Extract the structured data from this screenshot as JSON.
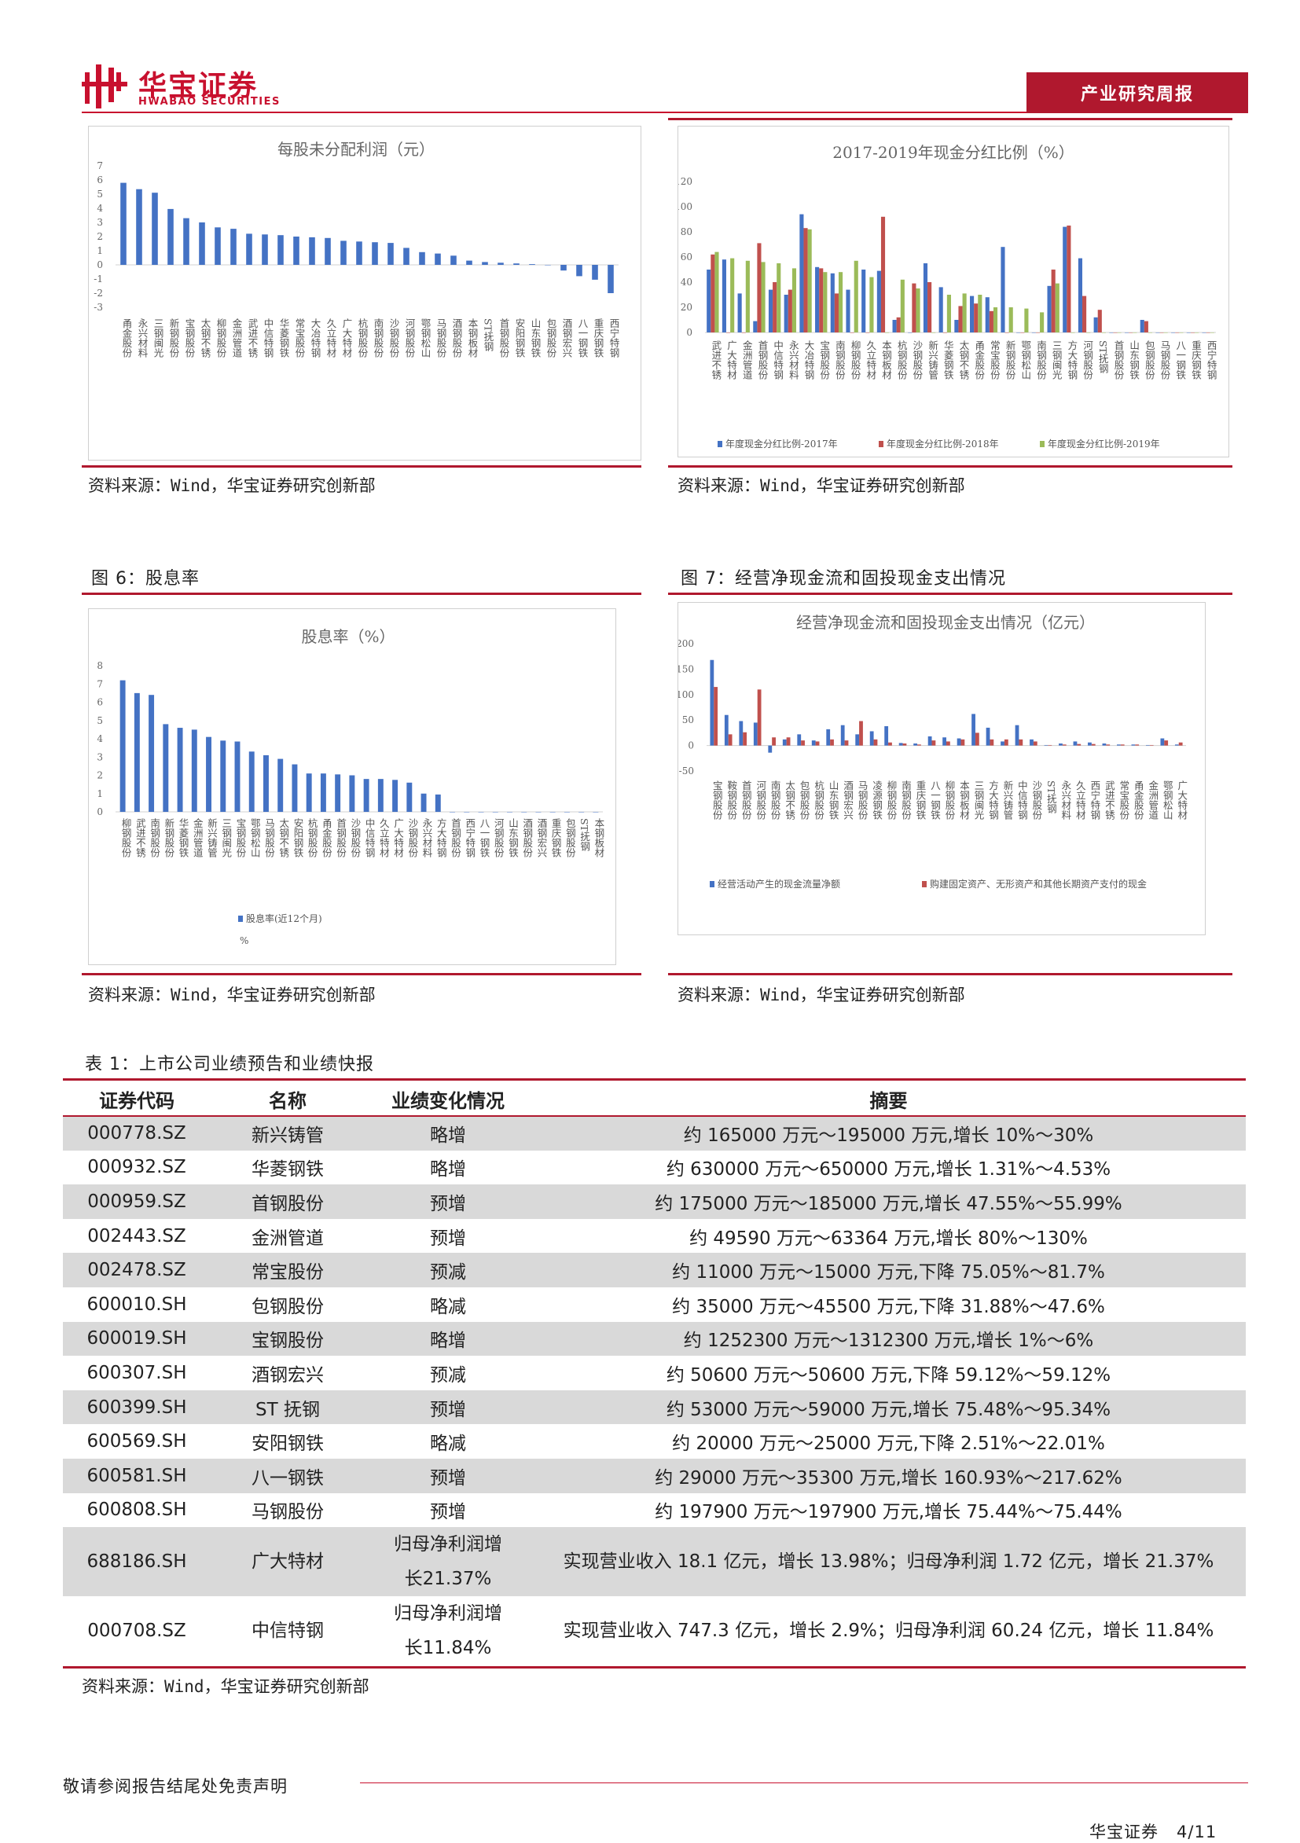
{
  "header": {
    "logo_cn": "华宝证券",
    "logo_en": "HWABAO SECURITIES",
    "report_type": "产业研究周报"
  },
  "figures": {
    "fig4": {
      "title": "每股未分配利润（元）",
      "source": "资料来源：Wind，华宝证券研究创新部"
    },
    "fig5": {
      "title": "2017-2019年现金分红比例（%）",
      "source": "资料来源：Wind，华宝证券研究创新部"
    },
    "fig6": {
      "caption": "图 6：股息率",
      "title": "股息率（%）",
      "source": "资料来源：Wind，华宝证券研究创新部"
    },
    "fig7": {
      "caption": "图 7：经营净现金流和固投现金支出情况",
      "title": "经营净现金流和固投现金支出情况（亿元）",
      "source": "资料来源：Wind，华宝证券研究创新部"
    }
  },
  "chart_data": [
    {
      "type": "bar",
      "title": "每股未分配利润（元）",
      "ylim": [
        -3,
        7
      ],
      "yticks": [
        "7",
        "6",
        "5",
        "4",
        "3",
        "2",
        "1",
        "0",
        "-1",
        "-2",
        "-3"
      ],
      "categories": [
        "甬金股份",
        "永兴材料",
        "三钢闽光",
        "新钢股份",
        "宝钢股份",
        "太钢不锈",
        "柳钢股份",
        "金洲管道",
        "武进不锈",
        "中信特钢",
        "华菱钢铁",
        "常宝股份",
        "大冶特钢",
        "久立特材",
        "广大特材",
        "杭钢股份",
        "南钢股份",
        "沙钢股份",
        "河钢股份",
        "鄂钢松山",
        "马钢股份",
        "酒钢股份",
        "本钢板材",
        "ST抚钢",
        "首钢股份",
        "安阳钢铁",
        "山东钢铁",
        "包钢股份",
        "酒钢宏兴",
        "八一钢铁",
        "重庆钢铁",
        "西宁特钢"
      ],
      "series": [
        {
          "values": [
            5.8,
            5.35,
            5.1,
            3.95,
            3.3,
            3.0,
            2.65,
            2.55,
            2.2,
            2.15,
            2.1,
            2.0,
            1.95,
            1.9,
            1.7,
            1.65,
            1.6,
            1.55,
            1.2,
            0.9,
            0.8,
            0.65,
            0.3,
            0.2,
            0.15,
            0.1,
            0.05,
            0.0,
            -0.4,
            -0.8,
            -1.05,
            -2.0
          ]
        }
      ]
    },
    {
      "type": "bar",
      "title": "2017-2019年现金分红比例（%）",
      "ylim": [
        0,
        120
      ],
      "yticks": [
        "120",
        "100",
        "80",
        "60",
        "40",
        "20",
        "0"
      ],
      "categories": [
        "武进不锈",
        "广大特材",
        "金洲管道",
        "首钢股份",
        "中信特钢",
        "永兴材料",
        "大冶特钢",
        "宝钢股份",
        "南钢股份",
        "柳钢股份",
        "久立特材",
        "本钢板材",
        "杭钢股份",
        "沙钢股份",
        "新兴铸管",
        "华菱钢铁",
        "太钢不锈",
        "甬金股份",
        "常宝股份",
        "新钢股份",
        "鄂钢松山",
        "南钢股份",
        "三钢闽光",
        "方大特钢",
        "河钢股份",
        "ST抚钢",
        "首钢股份",
        "山东钢铁",
        "包钢股份",
        "马钢股份",
        "八一钢铁",
        "重庆钢铁",
        "西宁特钢"
      ],
      "legend": "bottom",
      "series": [
        {
          "name": "年度现金分红比例-2017年",
          "values": [
            50,
            58,
            31,
            9,
            34,
            30,
            94,
            52,
            47,
            34,
            50,
            49,
            10,
            0,
            55,
            36,
            10,
            29,
            28,
            68,
            0,
            0,
            37,
            84,
            59,
            12,
            0,
            0,
            10,
            0,
            0,
            0,
            0
          ]
        },
        {
          "name": "年度现金分红比例-2018年",
          "values": [
            62,
            0,
            0,
            71,
            40,
            34,
            83,
            51,
            31,
            0,
            0,
            92,
            12,
            39,
            40,
            0,
            21,
            23,
            17,
            0,
            0,
            0,
            50,
            85,
            29,
            18,
            0,
            0,
            9,
            0,
            0,
            0,
            0
          ]
        },
        {
          "name": "年度现金分红比例-2019年",
          "values": [
            64,
            59,
            57,
            56,
            55,
            51,
            82,
            48,
            48,
            57,
            44,
            0,
            42,
            35,
            0,
            30,
            31,
            30,
            20,
            20,
            19,
            16,
            39,
            0,
            0,
            0,
            0,
            0,
            0,
            0,
            0,
            0,
            0
          ]
        }
      ]
    },
    {
      "type": "bar",
      "title": "股息率（%）",
      "ylim": [
        0,
        8
      ],
      "yticks": [
        "8",
        "7",
        "6",
        "5",
        "4",
        "3",
        "2",
        "1",
        "0"
      ],
      "categories": [
        "柳钢股份",
        "武进不锈",
        "南钢股份",
        "新钢股份",
        "华菱钢铁",
        "金洲管道",
        "新兴铸管",
        "三钢闽光",
        "宝钢股份",
        "鄂钢松山",
        "马钢股份",
        "太钢不锈",
        "安阳钢铁",
        "杭钢股份",
        "甬金股份",
        "首钢股份",
        "沙钢股份",
        "中信特钢",
        "久立特材",
        "广大特材",
        "沙钢股份",
        "永兴材料",
        "方大特钢",
        "首钢股份",
        "西宁特钢",
        "八一钢铁",
        "河钢股份",
        "山东钢铁",
        "酒钢股份",
        "酒钢宏兴",
        "重庆钢铁",
        "包钢股份",
        "ST抚钢",
        "本钢板材"
      ],
      "legend": "bottom",
      "series": [
        {
          "name": "股息率(近12个月)",
          "values": [
            7.2,
            6.5,
            6.4,
            4.8,
            4.6,
            4.5,
            4.1,
            3.9,
            3.85,
            3.3,
            3.1,
            2.9,
            2.6,
            2.1,
            2.1,
            2.05,
            2.0,
            1.8,
            1.8,
            1.75,
            1.6,
            1.0,
            0.95,
            0,
            0,
            0,
            0,
            0,
            0,
            0,
            0,
            0,
            0,
            0
          ]
        }
      ]
    },
    {
      "type": "bar",
      "title": "经营净现金流和固投现金支出情况（亿元）",
      "ylim": [
        -50,
        200
      ],
      "yticks": [
        "200",
        "150",
        "100",
        "50",
        "0",
        "-50"
      ],
      "categories": [
        "宝钢股份",
        "鞍钢股份",
        "首钢股份",
        "河钢股份",
        "南钢股份",
        "太钢不锈",
        "包钢股份",
        "杭钢股份",
        "山东钢铁",
        "酒钢宏兴",
        "马钢股份",
        "凌源钢铁",
        "柳钢股份",
        "南钢股份",
        "重庆钢铁",
        "八一钢铁",
        "柳钢股份",
        "本钢板材",
        "三钢闽光",
        "方大特钢",
        "新兴铸管",
        "中信特钢",
        "沙钢股份",
        "ST抚钢",
        "永兴材料",
        "久立特材",
        "西宁特钢",
        "武进不锈",
        "常宝股份",
        "甬金股份",
        "金洲管道",
        "鄂钢松山",
        "广大特材"
      ],
      "legend": "bottom",
      "series": [
        {
          "name": "经营活动产生的现金流量净额",
          "values": [
            168,
            60,
            48,
            45,
            -14,
            12,
            22,
            10,
            32,
            40,
            22,
            28,
            38,
            5,
            4,
            18,
            16,
            14,
            62,
            35,
            8,
            40,
            12,
            1,
            4,
            8,
            6,
            4,
            2,
            2,
            1,
            14,
            2
          ]
        },
        {
          "name": "购建固定资产、无形资产和其他长期资产支付的现金",
          "values": [
            115,
            22,
            26,
            110,
            16,
            16,
            10,
            8,
            12,
            10,
            48,
            12,
            6,
            4,
            2,
            10,
            8,
            12,
            25,
            12,
            12,
            12,
            8,
            1,
            2,
            3,
            3,
            2,
            2,
            2,
            1,
            10,
            6
          ]
        }
      ]
    }
  ],
  "table": {
    "caption": "表 1：上市公司业绩预告和业绩快报",
    "headers": [
      "证券代码",
      "名称",
      "业绩变化情况",
      "摘要"
    ],
    "rows": [
      [
        "000778.SZ",
        "新兴铸管",
        "略增",
        "约 165000 万元～195000 万元,增长 10%～30%"
      ],
      [
        "000932.SZ",
        "华菱钢铁",
        "略增",
        "约 630000 万元～650000 万元,增长 1.31%～4.53%"
      ],
      [
        "000959.SZ",
        "首钢股份",
        "预增",
        "约 175000 万元～185000 万元,增长 47.55%～55.99%"
      ],
      [
        "002443.SZ",
        "金洲管道",
        "预增",
        "约 49590 万元～63364 万元,增长 80%～130%"
      ],
      [
        "002478.SZ",
        "常宝股份",
        "预减",
        "约 11000 万元～15000 万元,下降 75.05%～81.7%"
      ],
      [
        "600010.SH",
        "包钢股份",
        "略减",
        "约 35000 万元～45500 万元,下降 31.88%～47.6%"
      ],
      [
        "600019.SH",
        "宝钢股份",
        "略增",
        "约 1252300 万元～1312300 万元,增长 1%～6%"
      ],
      [
        "600307.SH",
        "酒钢宏兴",
        "预减",
        "约 50600 万元～50600 万元,下降 59.12%～59.12%"
      ],
      [
        "600399.SH",
        "ST 抚钢",
        "预增",
        "约 53000 万元～59000 万元,增长 75.48%～95.34%"
      ],
      [
        "600569.SH",
        "安阳钢铁",
        "略减",
        "约 20000 万元～25000 万元,下降 2.51%～22.01%"
      ],
      [
        "600581.SH",
        "八一钢铁",
        "预增",
        "约 29000 万元～35300 万元,增长 160.93%～217.62%"
      ],
      [
        "600808.SH",
        "马钢股份",
        "预增",
        "约 197900 万元～197900 万元,增长 75.44%～75.44%"
      ],
      [
        "688186.SH",
        "广大特材",
        "归母净利润增长21.37%",
        "实现营业收入 18.1 亿元，增长 13.98%；归母净利润 1.72 亿元，增长 21.37%"
      ],
      [
        "000708.SZ",
        "中信特钢",
        "归母净利润增长11.84%",
        "实现营业收入 747.3 亿元，增长 2.9%；归母净利润 60.24 亿元，增长 11.84%"
      ]
    ],
    "source": "资料来源：Wind，华宝证券研究创新部"
  },
  "footer": {
    "disclaimer": "敬请参阅报告结尾处免责声明",
    "company": "华宝证券",
    "page": "4/11"
  },
  "colors": {
    "brand": "#c8102e",
    "tag_bg": "#b0182e",
    "blue": "#4472c4",
    "red": "#c0504d",
    "green": "#9bbb59",
    "row_shade": "#d9d9d9"
  }
}
